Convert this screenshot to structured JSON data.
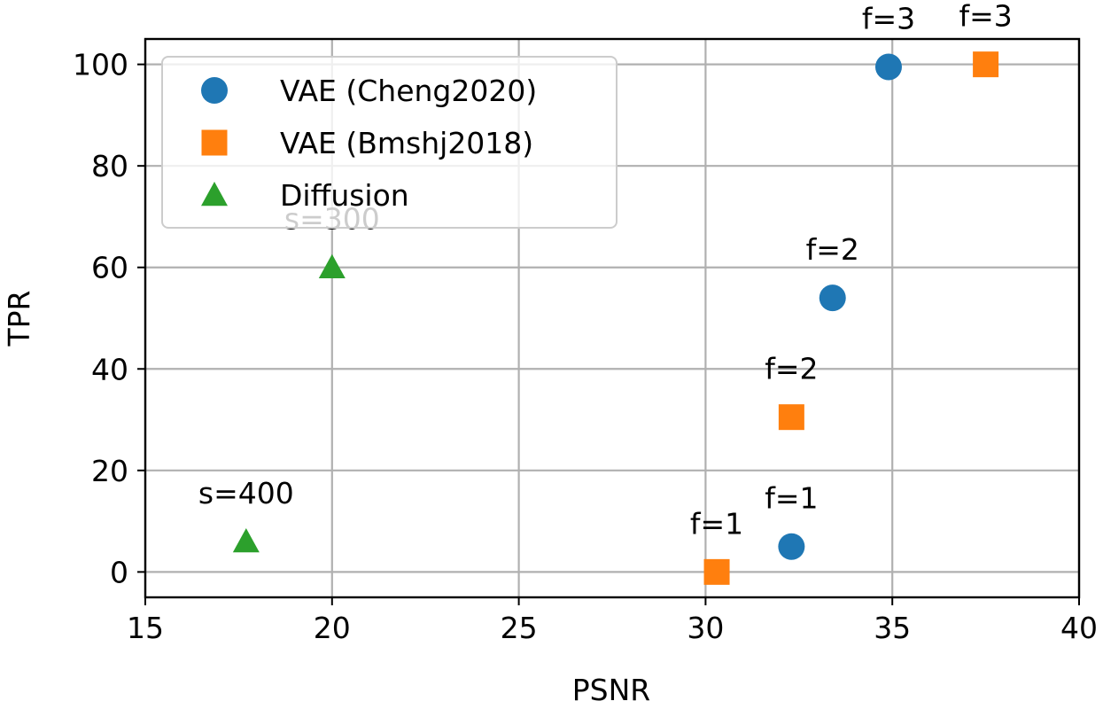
{
  "chart_data": {
    "type": "scatter",
    "title": "",
    "xlabel": "PSNR",
    "ylabel": "TPR",
    "xlim": [
      15,
      40
    ],
    "ylim": [
      -5,
      105
    ],
    "xticks": [
      15,
      20,
      25,
      30,
      35,
      40
    ],
    "yticks": [
      0,
      20,
      40,
      60,
      80,
      100
    ],
    "grid": true,
    "legend_position": "upper-left",
    "series": [
      {
        "name": "VAE (Cheng2020)",
        "marker": "circle",
        "color": "#1f77b4",
        "points": [
          {
            "x": 32.3,
            "y": 5,
            "label": "f=1"
          },
          {
            "x": 33.4,
            "y": 54,
            "label": "f=2"
          },
          {
            "x": 34.9,
            "y": 99.5,
            "label": "f=3"
          }
        ]
      },
      {
        "name": "VAE (Bmshj2018)",
        "marker": "square",
        "color": "#ff7f0e",
        "points": [
          {
            "x": 30.3,
            "y": 0,
            "label": "f=1"
          },
          {
            "x": 32.3,
            "y": 30.5,
            "label": "f=2"
          },
          {
            "x": 37.5,
            "y": 100,
            "label": "f=3"
          }
        ]
      },
      {
        "name": "Diffusion",
        "marker": "triangle",
        "color": "#2ca02c",
        "points": [
          {
            "x": 17.7,
            "y": 6,
            "label": "s=400"
          },
          {
            "x": 20.0,
            "y": 60,
            "label": "s=300"
          }
        ]
      }
    ]
  }
}
